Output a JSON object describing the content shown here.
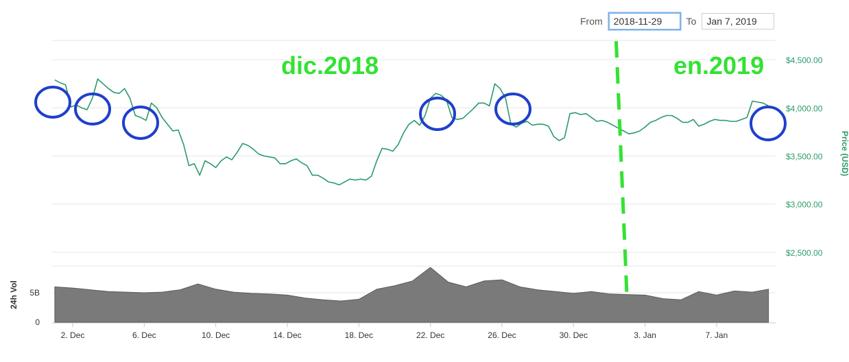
{
  "range_selector": {
    "from_label": "From",
    "from_value": "2018-11-29",
    "to_label": "To",
    "to_value": "Jan 7, 2019"
  },
  "annotations": {
    "left_label": "dic.2018",
    "right_label": "en.2019",
    "color": "#33e233",
    "circle_color": "#1f3fcc"
  },
  "chart_data": {
    "type": "line",
    "price_series": {
      "name": "Price (USD)",
      "color": "#2a9a6a",
      "ylabel": "Price (USD)",
      "ylim": [
        2400,
        4700
      ],
      "y_ticks": [
        2500,
        3000,
        3500,
        4000,
        4500
      ],
      "y_tick_labels": [
        "$2,500.00",
        "$3,000.00",
        "$3,500.00",
        "$4,000.00",
        "$4,500.00"
      ],
      "x": [
        0,
        0.3,
        0.6,
        0.9,
        1.2,
        1.5,
        1.8,
        2.1,
        2.4,
        2.7,
        3.0,
        3.3,
        3.6,
        3.9,
        4.2,
        4.5,
        4.8,
        5.1,
        5.4,
        5.7,
        6.0,
        6.3,
        6.6,
        6.9,
        7.2,
        7.5,
        7.8,
        8.1,
        8.4,
        8.7,
        9.0,
        9.3,
        9.6,
        9.9,
        10.2,
        10.5,
        10.8,
        11.1,
        11.4,
        11.7,
        12.0,
        12.3,
        12.6,
        12.9,
        13.2,
        13.5,
        13.8,
        14.1,
        14.4,
        14.7,
        15.0,
        15.3,
        15.6,
        15.9,
        16.2,
        16.5,
        16.8,
        17.1,
        17.4,
        17.7,
        18.0,
        18.3,
        18.6,
        18.9,
        19.2,
        19.5,
        19.8,
        20.1,
        20.4,
        20.7,
        21.0,
        21.3,
        21.6,
        21.9,
        22.2,
        22.5,
        22.8,
        23.1,
        23.4,
        23.7,
        24.0,
        24.3,
        24.6,
        24.9,
        25.2,
        25.5,
        25.8,
        26.1,
        26.4,
        26.7,
        27.0,
        27.3,
        27.6,
        27.9,
        28.2,
        28.5,
        28.8,
        29.1,
        29.4,
        29.7,
        30.0,
        30.3,
        30.6,
        30.9,
        31.2,
        31.5,
        31.8,
        32.1,
        32.4,
        32.7,
        33.0,
        33.3,
        33.6,
        33.9,
        34.2,
        34.5,
        34.8,
        35.1,
        35.4,
        35.7,
        36.0,
        36.3,
        36.6,
        36.9,
        37.2,
        37.5,
        37.8,
        38.1,
        38.4,
        38.7,
        39.0,
        39.3,
        39.6,
        39.9
      ],
      "values": [
        4290,
        4260,
        4240,
        4010,
        4030,
        4000,
        3980,
        4100,
        4300,
        4250,
        4200,
        4160,
        4150,
        4200,
        4100,
        3920,
        3900,
        3870,
        4050,
        4000,
        3900,
        3830,
        3760,
        3770,
        3620,
        3400,
        3420,
        3300,
        3450,
        3420,
        3380,
        3450,
        3490,
        3460,
        3540,
        3630,
        3610,
        3570,
        3520,
        3500,
        3490,
        3480,
        3420,
        3420,
        3450,
        3470,
        3430,
        3400,
        3300,
        3300,
        3270,
        3230,
        3220,
        3200,
        3230,
        3260,
        3250,
        3260,
        3250,
        3290,
        3450,
        3580,
        3570,
        3550,
        3620,
        3740,
        3830,
        3870,
        3820,
        3920,
        4100,
        4150,
        4130,
        4080,
        3900,
        3880,
        3890,
        3940,
        3990,
        4050,
        4050,
        4020,
        4250,
        4200,
        4100,
        3830,
        3800,
        3840,
        3860,
        3820,
        3830,
        3830,
        3810,
        3700,
        3660,
        3690,
        3940,
        3950,
        3930,
        3940,
        3900,
        3860,
        3870,
        3850,
        3820,
        3790,
        3760,
        3730,
        3740,
        3760,
        3800,
        3850,
        3870,
        3900,
        3920,
        3920,
        3890,
        3850,
        3850,
        3880,
        3810,
        3830,
        3860,
        3880,
        3870,
        3870,
        3860,
        3860,
        3880,
        3900,
        4070,
        4060,
        4050,
        4020
      ]
    },
    "volume_series": {
      "name": "24h Vol",
      "color": "#7a7a7a",
      "ylabel": "24h Vol",
      "y_ticks": [
        0,
        5
      ],
      "y_tick_labels": [
        "0",
        "5B"
      ],
      "x": [
        0,
        1,
        2,
        3,
        4,
        5,
        6,
        7,
        8,
        9,
        10,
        11,
        12,
        13,
        14,
        15,
        16,
        17,
        18,
        19,
        20,
        21,
        22,
        23,
        24,
        25,
        26,
        27,
        28,
        29,
        30,
        31,
        32,
        33,
        34,
        35,
        36,
        37,
        38,
        39,
        39.9
      ],
      "values": [
        6.0,
        5.8,
        5.5,
        5.2,
        5.1,
        5.0,
        5.1,
        5.5,
        6.5,
        5.6,
        5.1,
        4.9,
        4.8,
        4.6,
        4.1,
        3.8,
        3.6,
        3.9,
        5.6,
        6.2,
        7.0,
        9.3,
        6.8,
        6.0,
        7.0,
        7.2,
        6.0,
        5.5,
        5.2,
        4.9,
        5.2,
        4.8,
        4.7,
        4.6,
        4.0,
        3.8,
        5.2,
        4.6,
        5.3,
        5.1,
        5.6
      ]
    },
    "x_ticks": [
      1,
      5,
      9,
      13,
      17,
      21,
      25,
      29,
      33,
      37
    ],
    "x_tick_labels": [
      "2. Dec",
      "6. Dec",
      "10. Dec",
      "14. Dec",
      "18. Dec",
      "22. Dec",
      "26. Dec",
      "30. Dec",
      "3. Jan",
      "7. Jan"
    ],
    "highlight_circles_x": [
      0.9,
      5.1,
      9.6,
      30.3,
      35.6,
      35.6
    ],
    "divider_x": 31.5,
    "grid": true
  }
}
